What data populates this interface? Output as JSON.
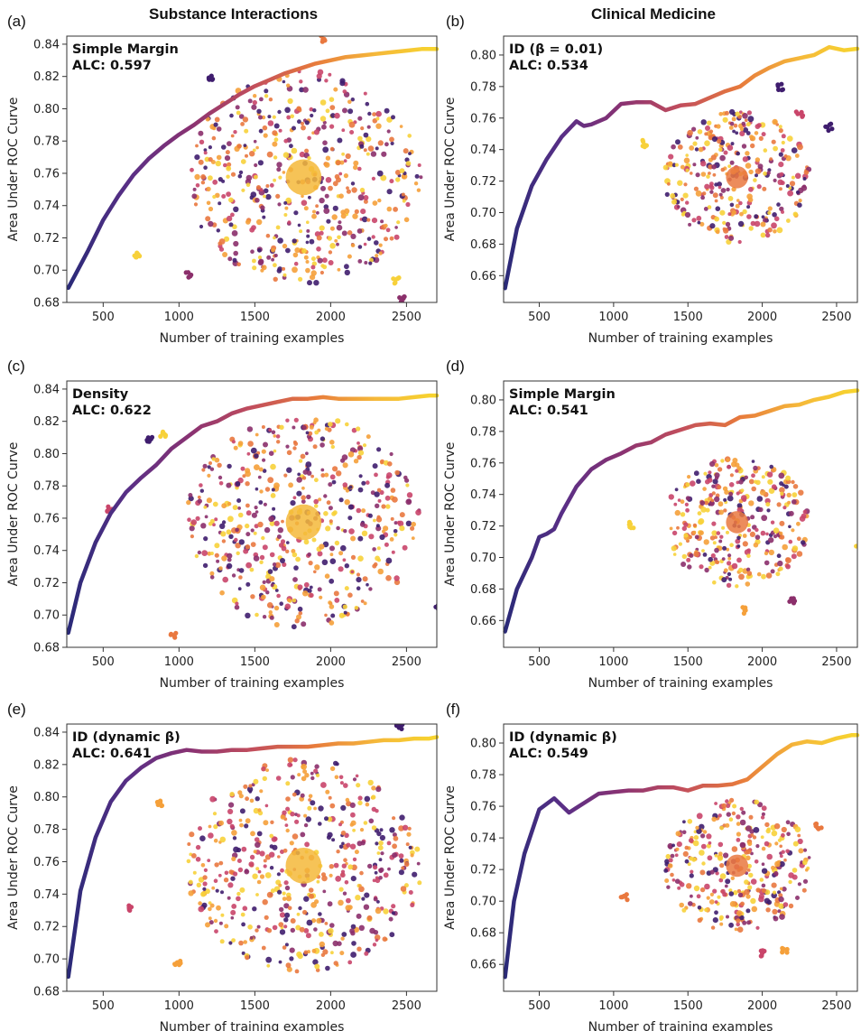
{
  "column_titles": [
    "Substance Interactions",
    "Clinical Medicine"
  ],
  "colors": {
    "curve_gradient": [
      "#2a2a78",
      "#5a2f86",
      "#8a3272",
      "#c24e5c",
      "#e77a3c",
      "#f5b83a",
      "#f7d52e"
    ],
    "dots": [
      "#3f1d6e",
      "#8b2f6b",
      "#c9456a",
      "#e9783f",
      "#f5a03a",
      "#f7d13a"
    ]
  },
  "chart_data": [
    {
      "type": "line",
      "panel_label": "(a)",
      "annotation": "Simple Margin",
      "alc_label": "ALC: 0.597",
      "xlabel": "Number of training examples",
      "ylabel": "Area Under ROC Curve",
      "xlim": [
        260,
        2700
      ],
      "ylim": [
        0.68,
        0.845
      ],
      "xticks": [
        500,
        1000,
        1500,
        2000,
        2500
      ],
      "yticks": [
        0.68,
        0.7,
        0.72,
        0.74,
        0.76,
        0.78,
        0.8,
        0.82,
        0.84
      ],
      "x": [
        270,
        400,
        500,
        600,
        700,
        800,
        900,
        1000,
        1100,
        1200,
        1300,
        1400,
        1500,
        1600,
        1700,
        1800,
        1900,
        2000,
        2100,
        2200,
        2300,
        2400,
        2500,
        2600,
        2700
      ],
      "y": [
        0.689,
        0.712,
        0.731,
        0.746,
        0.759,
        0.769,
        0.777,
        0.784,
        0.79,
        0.797,
        0.803,
        0.809,
        0.814,
        0.818,
        0.822,
        0.825,
        0.828,
        0.83,
        0.832,
        0.833,
        0.834,
        0.835,
        0.836,
        0.837,
        0.837
      ]
    },
    {
      "type": "line",
      "panel_label": "(b)",
      "annotation": "ID (β = 0.01)",
      "alc_label": "ALC: 0.534",
      "xlabel": "Number of training examples",
      "ylabel": "Area Under ROC Curve",
      "xlim": [
        260,
        2640
      ],
      "ylim": [
        0.643,
        0.812
      ],
      "xticks": [
        500,
        1000,
        1500,
        2000,
        2500
      ],
      "yticks": [
        0.66,
        0.68,
        0.7,
        0.72,
        0.74,
        0.76,
        0.78,
        0.8
      ],
      "x": [
        270,
        350,
        450,
        550,
        650,
        750,
        800,
        850,
        950,
        1050,
        1150,
        1250,
        1350,
        1450,
        1550,
        1650,
        1750,
        1850,
        1950,
        2050,
        2150,
        2250,
        2350,
        2450,
        2550,
        2640
      ],
      "y": [
        0.652,
        0.69,
        0.717,
        0.734,
        0.748,
        0.758,
        0.755,
        0.756,
        0.76,
        0.769,
        0.77,
        0.77,
        0.765,
        0.768,
        0.769,
        0.773,
        0.777,
        0.78,
        0.787,
        0.792,
        0.796,
        0.798,
        0.8,
        0.805,
        0.803,
        0.804
      ]
    },
    {
      "type": "line",
      "panel_label": "(c)",
      "annotation": "Density",
      "alc_label": "ALC: 0.622",
      "xlabel": "Number of training examples",
      "ylabel": "Area Under ROC Curve",
      "xlim": [
        260,
        2700
      ],
      "ylim": [
        0.68,
        0.845
      ],
      "xticks": [
        500,
        1000,
        1500,
        2000,
        2500
      ],
      "yticks": [
        0.68,
        0.7,
        0.72,
        0.74,
        0.76,
        0.78,
        0.8,
        0.82,
        0.84
      ],
      "x": [
        270,
        350,
        450,
        550,
        650,
        750,
        850,
        950,
        1050,
        1150,
        1250,
        1350,
        1450,
        1550,
        1650,
        1750,
        1850,
        1950,
        2050,
        2150,
        2250,
        2350,
        2450,
        2550,
        2650,
        2700
      ],
      "y": [
        0.689,
        0.72,
        0.745,
        0.763,
        0.776,
        0.785,
        0.793,
        0.803,
        0.81,
        0.817,
        0.82,
        0.825,
        0.828,
        0.83,
        0.832,
        0.834,
        0.834,
        0.835,
        0.834,
        0.834,
        0.834,
        0.834,
        0.834,
        0.835,
        0.836,
        0.836
      ]
    },
    {
      "type": "line",
      "panel_label": "(d)",
      "annotation": "Simple Margin",
      "alc_label": "ALC: 0.541",
      "xlabel": "Number of training examples",
      "ylabel": "Area Under ROC Curve",
      "xlim": [
        260,
        2640
      ],
      "ylim": [
        0.643,
        0.812
      ],
      "xticks": [
        500,
        1000,
        1500,
        2000,
        2500
      ],
      "yticks": [
        0.66,
        0.68,
        0.7,
        0.72,
        0.74,
        0.76,
        0.78,
        0.8
      ],
      "x": [
        270,
        350,
        450,
        500,
        550,
        600,
        650,
        750,
        850,
        950,
        1050,
        1150,
        1250,
        1350,
        1450,
        1550,
        1650,
        1750,
        1850,
        1950,
        2050,
        2150,
        2250,
        2350,
        2450,
        2550,
        2640
      ],
      "y": [
        0.653,
        0.68,
        0.7,
        0.713,
        0.715,
        0.718,
        0.728,
        0.745,
        0.756,
        0.762,
        0.766,
        0.771,
        0.773,
        0.778,
        0.781,
        0.784,
        0.785,
        0.784,
        0.789,
        0.79,
        0.793,
        0.796,
        0.797,
        0.8,
        0.802,
        0.805,
        0.806
      ]
    },
    {
      "type": "line",
      "panel_label": "(e)",
      "annotation": "ID (dynamic β)",
      "alc_label": "ALC: 0.641",
      "xlabel": "Number of training examples",
      "ylabel": "Area Under ROC Curve",
      "xlim": [
        260,
        2700
      ],
      "ylim": [
        0.68,
        0.845
      ],
      "xticks": [
        500,
        1000,
        1500,
        2000,
        2500
      ],
      "yticks": [
        0.68,
        0.7,
        0.72,
        0.74,
        0.76,
        0.78,
        0.8,
        0.82,
        0.84
      ],
      "x": [
        270,
        350,
        450,
        550,
        650,
        750,
        850,
        950,
        1050,
        1150,
        1250,
        1350,
        1450,
        1550,
        1650,
        1750,
        1850,
        1950,
        2050,
        2150,
        2250,
        2350,
        2450,
        2550,
        2650,
        2700
      ],
      "y": [
        0.689,
        0.742,
        0.775,
        0.797,
        0.81,
        0.818,
        0.824,
        0.827,
        0.829,
        0.828,
        0.828,
        0.829,
        0.829,
        0.83,
        0.831,
        0.831,
        0.831,
        0.832,
        0.833,
        0.833,
        0.834,
        0.835,
        0.835,
        0.836,
        0.836,
        0.837
      ]
    },
    {
      "type": "line",
      "panel_label": "(f)",
      "annotation": "ID (dynamic β)",
      "alc_label": "ALC: 0.549",
      "xlabel": "Number of training examples",
      "ylabel": "Area Under ROC Curve",
      "xlim": [
        260,
        2640
      ],
      "ylim": [
        0.643,
        0.812
      ],
      "xticks": [
        500,
        1000,
        1500,
        2000,
        2500
      ],
      "yticks": [
        0.66,
        0.68,
        0.7,
        0.72,
        0.74,
        0.76,
        0.78,
        0.8
      ],
      "x": [
        270,
        330,
        400,
        500,
        600,
        700,
        800,
        900,
        1000,
        1100,
        1200,
        1300,
        1400,
        1500,
        1600,
        1700,
        1800,
        1900,
        2000,
        2100,
        2200,
        2300,
        2400,
        2500,
        2600,
        2640
      ],
      "y": [
        0.652,
        0.7,
        0.73,
        0.758,
        0.765,
        0.756,
        0.762,
        0.768,
        0.769,
        0.77,
        0.77,
        0.772,
        0.772,
        0.77,
        0.773,
        0.773,
        0.774,
        0.777,
        0.785,
        0.793,
        0.799,
        0.801,
        0.8,
        0.803,
        0.805,
        0.805
      ]
    }
  ]
}
